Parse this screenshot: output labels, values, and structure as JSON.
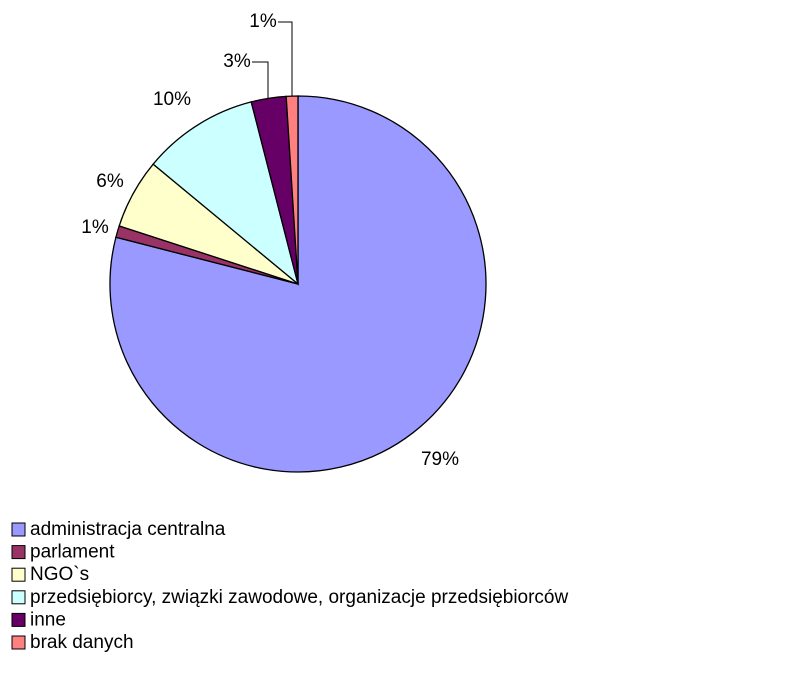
{
  "chart_data": {
    "type": "pie",
    "categories": [
      "administracja centralna",
      "parlament",
      "NGO`s",
      "przedsiębiorcy, związki zawodowe, organizacje przedsiębiorców",
      "inne",
      "brak danych"
    ],
    "values": [
      79,
      1,
      6,
      10,
      3,
      1
    ],
    "value_labels": [
      "79%",
      "1%",
      "6%",
      "10%",
      "3%",
      "1%"
    ],
    "colors": [
      "#9999ff",
      "#993366",
      "#ffffcc",
      "#ccffff",
      "#660066",
      "#ff8080"
    ],
    "legend": "bottom"
  }
}
